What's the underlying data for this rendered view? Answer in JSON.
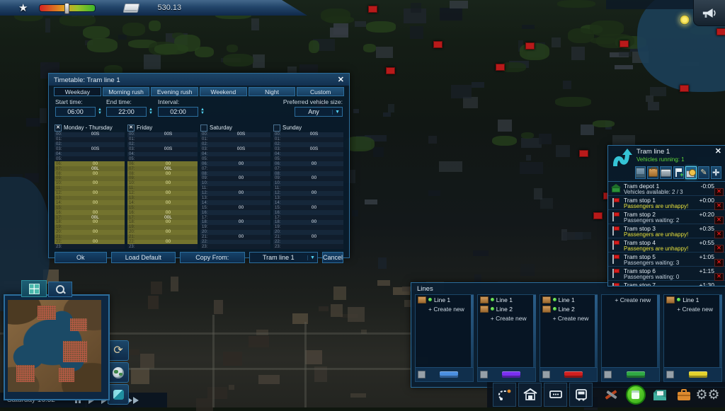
{
  "hud": {
    "money": "530.13",
    "clock": "Saturday 16:52"
  },
  "timetable_dialog": {
    "title": "Timetable: Tram line 1",
    "tabs": [
      "Weekday",
      "Morning rush",
      "Evening rush",
      "Weekend",
      "Night",
      "Custom"
    ],
    "selected_tab": "Weekday",
    "start_time_label": "Start time:",
    "start_time": "06:00",
    "end_time_label": "End time:",
    "end_time": "22:00",
    "interval_label": "Interval:",
    "interval": "02:00",
    "vehicle_size_label": "Preferred vehicle size:",
    "vehicle_size": "Any",
    "hours": [
      "00:",
      "01:",
      "02:",
      "03:",
      "04:",
      "05:",
      "06:",
      "07:",
      "08:",
      "09:",
      "10:",
      "11:",
      "12:",
      "13:",
      "14:",
      "15:",
      "16:",
      "17:",
      "18:",
      "19:",
      "20:",
      "21:",
      "22:",
      "23:"
    ],
    "columns": [
      {
        "label": "Monday - Thursday",
        "checked": true,
        "highlighted": true,
        "highlight_from": 6,
        "highlight_to": 22,
        "values": [
          "00S",
          "",
          "",
          "00S",
          "",
          "",
          "00",
          "00L",
          "00",
          "",
          "00",
          "",
          "00",
          "",
          "00",
          "",
          "00",
          "00L",
          "00",
          "",
          "00",
          "",
          "00",
          ""
        ]
      },
      {
        "label": "Friday",
        "checked": true,
        "highlighted": true,
        "highlight_from": 6,
        "highlight_to": 22,
        "values": [
          "00S",
          "",
          "",
          "00S",
          "",
          "",
          "00",
          "00L",
          "00",
          "",
          "00",
          "",
          "00",
          "",
          "00",
          "",
          "00",
          "00L",
          "00",
          "",
          "00",
          "",
          "00",
          ""
        ]
      },
      {
        "label": "Saturday",
        "checked": false,
        "highlighted": false,
        "values": [
          "00S",
          "",
          "",
          "00S",
          "",
          "",
          "00",
          "",
          "",
          "00",
          "",
          "",
          "00",
          "",
          "",
          "00",
          "",
          "",
          "00",
          "",
          "",
          "00",
          "",
          ""
        ]
      },
      {
        "label": "Sunday",
        "checked": false,
        "highlighted": false,
        "values": [
          "00S",
          "",
          "",
          "00S",
          "",
          "",
          "00",
          "",
          "",
          "00",
          "",
          "",
          "00",
          "",
          "",
          "00",
          "",
          "",
          "00",
          "",
          "",
          "00",
          "",
          ""
        ]
      }
    ],
    "ok_label": "Ok",
    "load_default_label": "Load Default",
    "copy_from_label": "Copy From:",
    "copy_from_value": "Tram line 1",
    "cancel_label": "Cancel"
  },
  "line_panel": {
    "title": "Tram line 1",
    "subtitle": "Vehicles running: 1",
    "toolbar_left": [
      "line-statistics-icon",
      "passengers-icon",
      "vehicles-icon"
    ],
    "toolbar_right": [
      {
        "name": "add-stop-icon",
        "selected": false
      },
      {
        "name": "timetable-icon",
        "selected": true
      },
      {
        "name": "edit-line-icon",
        "selected": false
      },
      {
        "name": "center-view-icon",
        "selected": false
      }
    ],
    "stops": [
      {
        "type": "depot",
        "name": "Tram depot 1",
        "detail": "Vehicles available: 2 / 3",
        "warning": false,
        "time": "-0:05"
      },
      {
        "type": "stop",
        "name": "Tram stop 1",
        "detail": "Passengers are unhappy!",
        "warning": true,
        "time": "+0:00"
      },
      {
        "type": "stop",
        "name": "Tram stop 2",
        "detail": "Passengers waiting: 2",
        "warning": false,
        "time": "+0:20"
      },
      {
        "type": "stop",
        "name": "Tram stop 3",
        "detail": "Passengers are unhappy!",
        "warning": true,
        "time": "+0:35"
      },
      {
        "type": "stop",
        "name": "Tram stop 4",
        "detail": "Passengers are unhappy!",
        "warning": true,
        "time": "+0:55"
      },
      {
        "type": "stop",
        "name": "Tram stop 5",
        "detail": "Passengers waiting: 3",
        "warning": false,
        "time": "+1:05"
      },
      {
        "type": "stop",
        "name": "Tram stop 6",
        "detail": "Passengers waiting: 0",
        "warning": false,
        "time": "+1:15"
      },
      {
        "type": "stop",
        "name": "Tram stop 7",
        "detail": "",
        "warning": false,
        "time": "+1:30"
      }
    ]
  },
  "lines_panel": {
    "title": "Lines",
    "create_label": "+ Create new",
    "columns": [
      {
        "mode": "bus",
        "color": "#4a8fe0",
        "lines": [
          "Line 1"
        ]
      },
      {
        "mode": "trolleybus",
        "color": "#7a2ff0",
        "lines": [
          "Line 1",
          "Line 2"
        ]
      },
      {
        "mode": "tram",
        "color": "#d01f1f",
        "lines": [
          "Line 1",
          "Line 2"
        ]
      },
      {
        "mode": "metro",
        "color": "#2fa844",
        "lines": []
      },
      {
        "mode": "waterbus",
        "color": "#e3d22c",
        "lines": [
          "Line 1"
        ]
      }
    ]
  },
  "playback": [
    "pause-icon",
    "play-icon",
    "fast-forward-icon",
    "fastest-forward-icon"
  ],
  "toolbar_buttons": [
    "line-tool-icon",
    "depot-tool-icon",
    "stop-tool-icon",
    "vehicle-tool-icon",
    "build-tool-icon",
    "transport-menu-icon",
    "archive-icon",
    "business-icon",
    "settings-icon"
  ],
  "colors": {
    "accent_cyan": "#52d2f2",
    "warning_yellow": "#e8e23c",
    "running_green": "#5fd83a",
    "delete_red": "#e01818",
    "highlight_row": "#6f6f2b"
  }
}
